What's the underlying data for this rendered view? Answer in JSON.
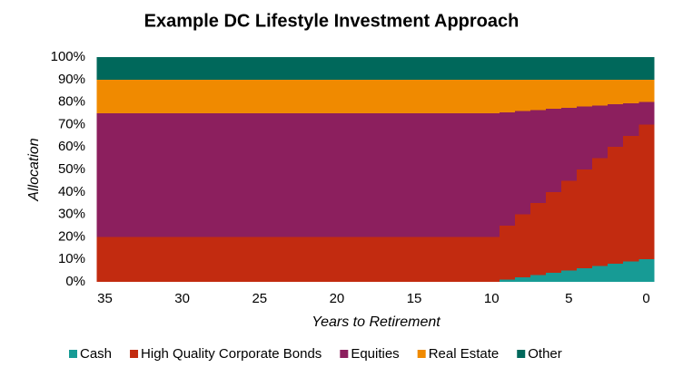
{
  "chart_data": {
    "type": "stacked-step-area",
    "title": "Example DC Lifestyle Investment Approach",
    "x_label": "Years to Retirement",
    "y_label": "Allocation",
    "x": [
      35,
      34,
      33,
      32,
      31,
      30,
      29,
      28,
      27,
      26,
      25,
      24,
      23,
      22,
      21,
      20,
      19,
      18,
      17,
      16,
      15,
      14,
      13,
      12,
      11,
      10,
      9,
      8,
      7,
      6,
      5,
      4,
      3,
      2,
      1,
      0
    ],
    "series": [
      {
        "name": "Cash",
        "color": "#179b95",
        "values": [
          0,
          0,
          0,
          0,
          0,
          0,
          0,
          0,
          0,
          0,
          0,
          0,
          0,
          0,
          0,
          0,
          0,
          0,
          0,
          0,
          0,
          0,
          0,
          0,
          0,
          0,
          1,
          2,
          3,
          4,
          5,
          6,
          7,
          8,
          9,
          10
        ]
      },
      {
        "name": "High Quality Corporate Bonds",
        "color": "#c22b10",
        "values": [
          20,
          20,
          20,
          20,
          20,
          20,
          20,
          20,
          20,
          20,
          20,
          20,
          20,
          20,
          20,
          20,
          20,
          20,
          20,
          20,
          20,
          20,
          20,
          20,
          20,
          20,
          24,
          28,
          32,
          36,
          40,
          44,
          48,
          52,
          56,
          60
        ]
      },
      {
        "name": "Equities",
        "color": "#8c1f5e",
        "values": [
          55,
          55,
          55,
          55,
          55,
          55,
          55,
          55,
          55,
          55,
          55,
          55,
          55,
          55,
          55,
          55,
          55,
          55,
          55,
          55,
          55,
          55,
          55,
          55,
          55,
          55,
          50.5,
          46,
          41.5,
          37,
          32.5,
          28,
          23.5,
          19,
          14.5,
          10
        ]
      },
      {
        "name": "Real Estate",
        "color": "#f08a00",
        "values": [
          15,
          15,
          15,
          15,
          15,
          15,
          15,
          15,
          15,
          15,
          15,
          15,
          15,
          15,
          15,
          15,
          15,
          15,
          15,
          15,
          15,
          15,
          15,
          15,
          15,
          15,
          14.5,
          14,
          13.5,
          13,
          12.5,
          12,
          11.5,
          11,
          10.5,
          10
        ]
      },
      {
        "name": "Other",
        "color": "#00685b",
        "values": [
          10,
          10,
          10,
          10,
          10,
          10,
          10,
          10,
          10,
          10,
          10,
          10,
          10,
          10,
          10,
          10,
          10,
          10,
          10,
          10,
          10,
          10,
          10,
          10,
          10,
          10,
          10,
          10,
          10,
          10,
          10,
          10,
          10,
          10,
          10,
          10
        ]
      }
    ],
    "xlim": [
      35.5,
      -0.5
    ],
    "xticks": [
      35,
      30,
      25,
      20,
      15,
      10,
      5,
      0
    ],
    "ylim": [
      0,
      100
    ],
    "yticks": [
      {
        "value": 0,
        "label": "0%"
      },
      {
        "value": 10,
        "label": "10%"
      },
      {
        "value": 20,
        "label": "20%"
      },
      {
        "value": 30,
        "label": "30%"
      },
      {
        "value": 40,
        "label": "40%"
      },
      {
        "value": 50,
        "label": "50%"
      },
      {
        "value": 60,
        "label": "60%"
      },
      {
        "value": 70,
        "label": "70%"
      },
      {
        "value": 80,
        "label": "80%"
      },
      {
        "value": 90,
        "label": "90%"
      },
      {
        "value": 100,
        "label": "100%"
      }
    ],
    "legend": "bottom"
  }
}
